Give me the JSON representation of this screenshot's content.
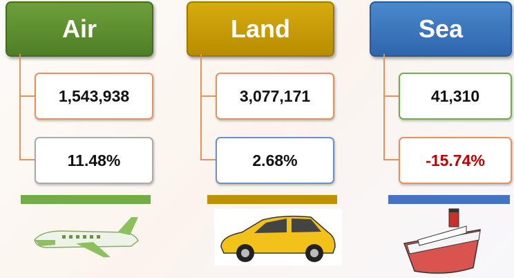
{
  "columns": [
    {
      "title": "Air",
      "value": "1,543,938",
      "change": "11.48%"
    },
    {
      "title": "Land",
      "value": "3,077,171",
      "change": "2.68%"
    },
    {
      "title": "Sea",
      "value": "41,310",
      "change": "-15.74%"
    }
  ]
}
